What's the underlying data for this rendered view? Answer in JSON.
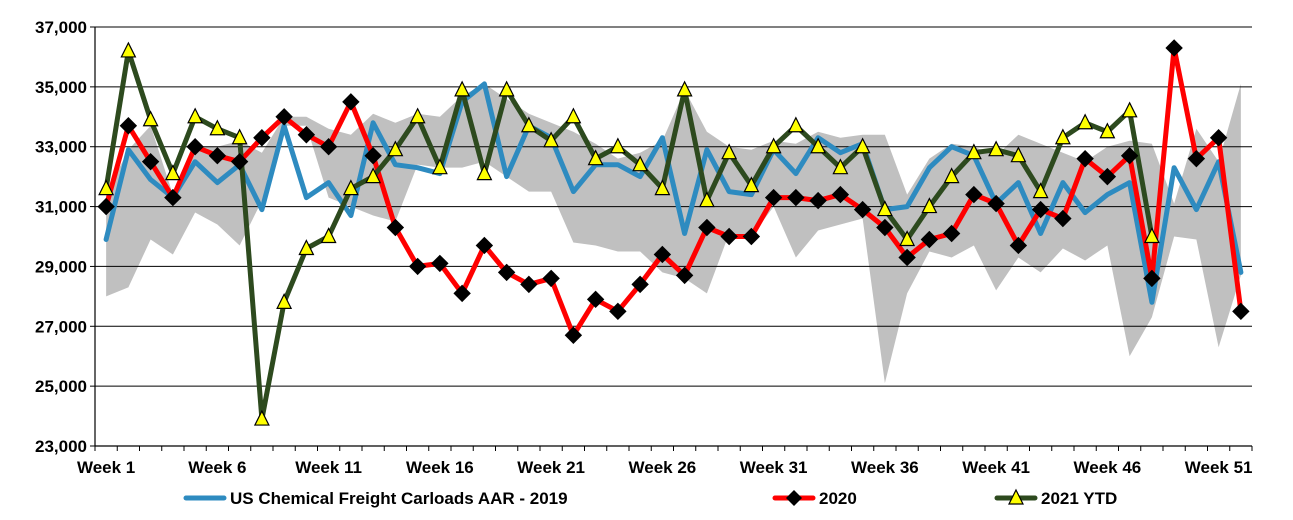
{
  "chart_data": {
    "type": "line",
    "title": "",
    "xlabel": "",
    "ylabel": "",
    "ylim": [
      23000,
      37000
    ],
    "yticks": [
      23000,
      25000,
      27000,
      29000,
      31000,
      33000,
      35000,
      37000
    ],
    "ytick_labels": [
      "23,000",
      "25,000",
      "27,000",
      "29,000",
      "31,000",
      "33,000",
      "35,000",
      "37,000"
    ],
    "xtick_labels": [
      {
        "week": 1,
        "label": "Week 1"
      },
      {
        "week": 6,
        "label": "Week 6"
      },
      {
        "week": 11,
        "label": "Week 11"
      },
      {
        "week": 16,
        "label": "Week 16"
      },
      {
        "week": 21,
        "label": "Week 21"
      },
      {
        "week": 26,
        "label": "Week 26"
      },
      {
        "week": 31,
        "label": "Week 31"
      },
      {
        "week": 36,
        "label": "Week 36"
      },
      {
        "week": 41,
        "label": "Week 41"
      },
      {
        "week": 46,
        "label": "Week 46"
      },
      {
        "week": 51,
        "label": "Week 51"
      }
    ],
    "grid": "horizontal",
    "legend": "bottom",
    "range_band": {
      "color": "#c0c0c0",
      "lower": [
        28000,
        28300,
        29900,
        29400,
        30800,
        30400,
        29700,
        31200,
        33700,
        33700,
        31300,
        31000,
        30700,
        30500,
        32400,
        32300,
        32300,
        32500,
        32000,
        31500,
        31500,
        29800,
        29700,
        29500,
        29500,
        28800,
        28600,
        28100,
        30100,
        30000,
        31000,
        29300,
        30200,
        30400,
        30600,
        25100,
        28100,
        29500,
        29300,
        29700,
        28200,
        29300,
        28800,
        29600,
        29200,
        29700,
        26000,
        27300,
        30000,
        29900,
        26300,
        28700
      ],
      "upper": [
        31400,
        32900,
        33700,
        31400,
        33000,
        33000,
        33200,
        32800,
        34000,
        34000,
        33600,
        33400,
        34100,
        33800,
        34100,
        34000,
        34700,
        35100,
        34600,
        34100,
        33800,
        33500,
        33100,
        32600,
        32800,
        33200,
        34900,
        33500,
        33000,
        32900,
        33200,
        33100,
        33500,
        33300,
        33400,
        33400,
        31400,
        32600,
        33100,
        33000,
        32700,
        33400,
        33100,
        32800,
        32500,
        33000,
        33200,
        33100,
        31100,
        33600,
        32500,
        35100
      ]
    },
    "series": [
      {
        "name": "US Chemical Freight Carloads AAR - 2019",
        "color": "#2e8bc0",
        "marker": "none",
        "values": [
          29900,
          32900,
          31900,
          31300,
          32500,
          31800,
          32400,
          30900,
          33700,
          31300,
          31800,
          30700,
          33800,
          32400,
          32300,
          32100,
          34500,
          35100,
          32000,
          33700,
          33300,
          31500,
          32400,
          32400,
          32000,
          33300,
          30100,
          32900,
          31500,
          31400,
          32900,
          32100,
          33300,
          32800,
          33100,
          30900,
          31000,
          32300,
          33000,
          32700,
          31100,
          31800,
          30100,
          31800,
          30800,
          31400,
          31800,
          27800,
          32300,
          30900,
          32500,
          28800
        ]
      },
      {
        "name": "2020",
        "color": "#ff0000",
        "marker": "diamond",
        "values": [
          31000,
          33700,
          32500,
          31300,
          33000,
          32700,
          32500,
          33300,
          34000,
          33400,
          33000,
          34500,
          32700,
          30300,
          29000,
          29100,
          28100,
          29700,
          28800,
          28400,
          28600,
          26700,
          27900,
          27500,
          28400,
          29400,
          28700,
          30300,
          30000,
          30000,
          31300,
          31300,
          31200,
          31400,
          30900,
          30300,
          29300,
          29900,
          30100,
          31400,
          31100,
          29700,
          30900,
          30600,
          32600,
          32000,
          32700,
          28600,
          36300,
          32600,
          33300,
          27500
        ]
      },
      {
        "name": "2021 YTD",
        "color": "#2d4a1e",
        "marker": "triangle",
        "values": [
          31600,
          36200,
          33900,
          32100,
          34000,
          33600,
          33300,
          23900,
          27800,
          29600,
          30000,
          31600,
          32000,
          32900,
          34000,
          32300,
          34900,
          32100,
          34900,
          33700,
          33200,
          34000,
          32600,
          33000,
          32400,
          31600,
          34900,
          31200,
          32800,
          31700,
          33000,
          33700,
          33000,
          32300,
          33000,
          30900,
          29900,
          31000,
          32000,
          32800,
          32900,
          32700,
          31500,
          33300,
          33800,
          33500,
          34200,
          30000
        ]
      }
    ]
  }
}
